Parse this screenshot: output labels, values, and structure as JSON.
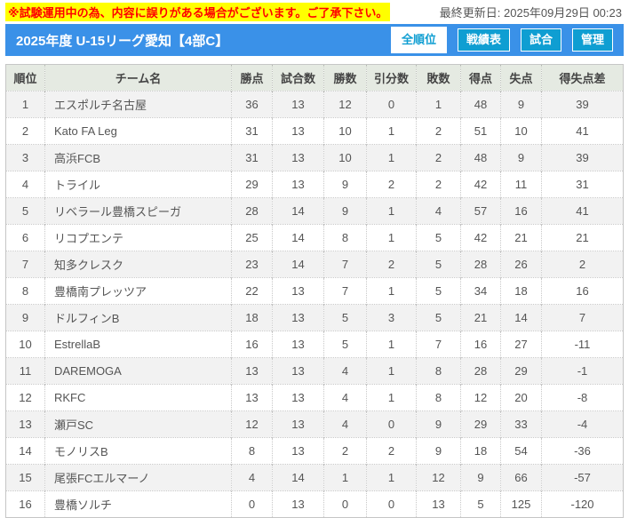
{
  "notice": {
    "text": "※試験運用中の為、内容に誤りがある場合がございます。ご了承下さい。",
    "updated": "最終更新日: 2025年09月29日 00:23"
  },
  "header": {
    "title": "2025年度 U-15リーグ愛知【4部C】",
    "tabs": [
      {
        "label": "全順位",
        "active": true
      },
      {
        "label": "戦績表",
        "active": false
      },
      {
        "label": "試合",
        "active": false
      },
      {
        "label": "管理",
        "active": false
      }
    ]
  },
  "table": {
    "columns": [
      "順位",
      "チーム名",
      "勝点",
      "試合数",
      "勝数",
      "引分数",
      "敗数",
      "得点",
      "失点",
      "得失点差"
    ],
    "rows": [
      [
        1,
        "エスポルチ名古屋",
        36,
        13,
        12,
        0,
        1,
        48,
        9,
        39
      ],
      [
        2,
        "Kato FA Leg",
        31,
        13,
        10,
        1,
        2,
        51,
        10,
        41
      ],
      [
        3,
        "高浜FCB",
        31,
        13,
        10,
        1,
        2,
        48,
        9,
        39
      ],
      [
        4,
        "トライル",
        29,
        13,
        9,
        2,
        2,
        42,
        11,
        31
      ],
      [
        5,
        "リベラール豊橋スピーガ",
        28,
        14,
        9,
        1,
        4,
        57,
        16,
        41
      ],
      [
        6,
        "リコプエンテ",
        25,
        14,
        8,
        1,
        5,
        42,
        21,
        21
      ],
      [
        7,
        "知多クレスク",
        23,
        14,
        7,
        2,
        5,
        28,
        26,
        2
      ],
      [
        8,
        "豊橋南プレッツア",
        22,
        13,
        7,
        1,
        5,
        34,
        18,
        16
      ],
      [
        9,
        "ドルフィンB",
        18,
        13,
        5,
        3,
        5,
        21,
        14,
        7
      ],
      [
        10,
        "EstrellaB",
        16,
        13,
        5,
        1,
        7,
        16,
        27,
        -11
      ],
      [
        11,
        "DAREMOGA",
        13,
        13,
        4,
        1,
        8,
        28,
        29,
        -1
      ],
      [
        12,
        "RKFC",
        13,
        13,
        4,
        1,
        8,
        12,
        20,
        -8
      ],
      [
        13,
        "瀬戸SC",
        12,
        13,
        4,
        0,
        9,
        29,
        33,
        -4
      ],
      [
        14,
        "モノリスB",
        8,
        13,
        2,
        2,
        9,
        18,
        54,
        -36
      ],
      [
        15,
        "尾張FCエルマーノ",
        4,
        14,
        1,
        1,
        12,
        9,
        66,
        -57
      ],
      [
        16,
        "豊橋ソルチ",
        0,
        13,
        0,
        0,
        13,
        5,
        125,
        -120
      ]
    ]
  },
  "colors": {
    "notice_highlight": "#ffff00",
    "notice_text": "#ff0000",
    "title_bar": "#3a91e8",
    "tab_button": "#0f9ed2",
    "table_header_bg": "#e5eae2",
    "row_stripe": "#f2f2f2",
    "table_text": "#555555"
  }
}
